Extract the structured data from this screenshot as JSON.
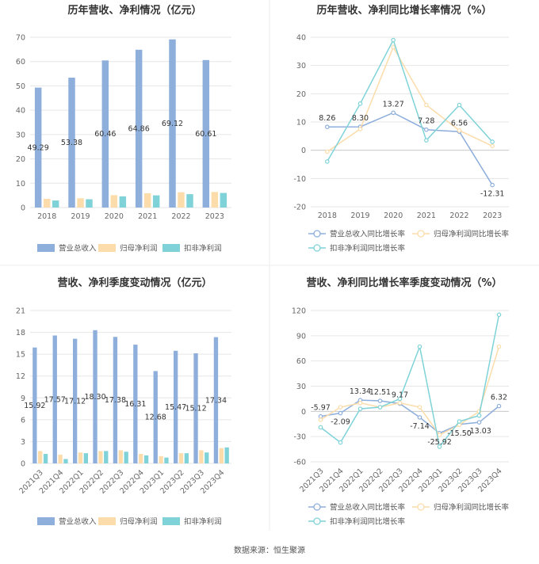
{
  "source": "数据来源：恒生聚源",
  "colors": {
    "revenue": "#8eaedc",
    "net_profit": "#fcdcaa",
    "deducted_net_profit": "#7fd3d8"
  },
  "chart_data": [
    {
      "id": "c1",
      "type": "bar",
      "title": "历年营收、净利情况（亿元）",
      "categories": [
        "2018",
        "2019",
        "2020",
        "2021",
        "2022",
        "2023"
      ],
      "series": [
        {
          "name": "营业总收入",
          "values": [
            49.29,
            53.38,
            60.46,
            64.86,
            69.12,
            60.61
          ],
          "labeled": true
        },
        {
          "name": "归母净利润",
          "values": [
            3.6,
            3.8,
            5.1,
            5.9,
            6.3,
            6.4
          ]
        },
        {
          "name": "扣非净利润",
          "values": [
            2.9,
            3.4,
            4.6,
            5.0,
            5.5,
            6.0
          ]
        }
      ],
      "ylim": [
        0,
        70
      ],
      "yticks": [
        0,
        10,
        20,
        30,
        40,
        50,
        60,
        70
      ],
      "grid": true,
      "legend": "bottom"
    },
    {
      "id": "c2",
      "type": "line",
      "title": "历年营收、净利同比增长率情况（%）",
      "categories": [
        "2018",
        "2019",
        "2020",
        "2021",
        "2022",
        "2023"
      ],
      "series": [
        {
          "name": "营业总收入同比增长率",
          "values": [
            8.26,
            8.3,
            13.27,
            7.28,
            6.56,
            -12.31
          ],
          "labeled": true
        },
        {
          "name": "归母净利润同比增长率",
          "values": [
            -0.5,
            7.5,
            36.5,
            16.0,
            7.0,
            1.5
          ]
        },
        {
          "name": "扣非净利润同比增长率",
          "values": [
            -4.0,
            16.5,
            39.0,
            3.5,
            16.0,
            3.0
          ]
        }
      ],
      "ylim": [
        -20,
        40
      ],
      "yticks": [
        -20,
        -10,
        0,
        10,
        20,
        30,
        40
      ],
      "grid": true,
      "legend": "bottom"
    },
    {
      "id": "c3",
      "type": "bar",
      "title": "营收、净利季度变动情况（亿元）",
      "categories": [
        "2021Q3",
        "2021Q4",
        "2022Q1",
        "2022Q2",
        "2022Q3",
        "2022Q4",
        "2023Q1",
        "2023Q2",
        "2023Q3",
        "2023Q4"
      ],
      "series": [
        {
          "name": "营业总收入",
          "values": [
            15.92,
            17.57,
            17.12,
            18.3,
            17.38,
            16.31,
            12.68,
            15.47,
            15.12,
            17.34
          ],
          "labeled": true
        },
        {
          "name": "归母净利润",
          "values": [
            1.7,
            1.2,
            1.5,
            1.7,
            1.8,
            1.3,
            1.0,
            1.4,
            1.8,
            2.1
          ]
        },
        {
          "name": "扣非净利润",
          "values": [
            1.3,
            0.6,
            1.4,
            1.7,
            1.6,
            1.1,
            0.8,
            1.4,
            1.5,
            2.2
          ]
        }
      ],
      "ylim": [
        0,
        21
      ],
      "yticks": [
        0,
        3,
        6,
        9,
        12,
        15,
        18,
        21
      ],
      "grid": true,
      "legend": "bottom"
    },
    {
      "id": "c4",
      "type": "line",
      "title": "营收、净利同比增长率季度变动情况（%）",
      "categories": [
        "2021Q3",
        "2021Q4",
        "2022Q1",
        "2022Q2",
        "2022Q3",
        "2022Q4",
        "2023Q1",
        "2023Q2",
        "2023Q3",
        "2023Q4"
      ],
      "series": [
        {
          "name": "营业总收入同比增长率",
          "values": [
            -5.97,
            -2.09,
            13.34,
            12.51,
            9.17,
            -7.14,
            -25.92,
            -15.5,
            -13.03,
            6.32
          ],
          "labeled": true
        },
        {
          "name": "归母净利润同比增长率",
          "values": [
            -10,
            5,
            10,
            5,
            10,
            5,
            -28,
            -16,
            0,
            77
          ]
        },
        {
          "name": "扣非净利润同比增长率",
          "values": [
            -19,
            -37,
            3,
            5,
            15,
            77,
            -42,
            -12,
            -5,
            115
          ]
        }
      ],
      "ylim": [
        -60,
        120
      ],
      "yticks": [
        -60,
        -30,
        0,
        30,
        60,
        90,
        120
      ],
      "grid": true,
      "legend": "bottom"
    }
  ]
}
